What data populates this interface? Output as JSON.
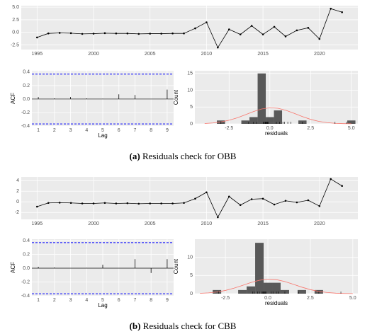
{
  "chart_data": [
    {
      "type": "line",
      "x": [
        1995,
        1996,
        1997,
        1998,
        1999,
        2000,
        2001,
        2002,
        2003,
        2004,
        2005,
        2006,
        2007,
        2008,
        2009,
        2010,
        2011,
        2012,
        2013,
        2014,
        2015,
        2016,
        2017,
        2018,
        2019,
        2020,
        2021,
        2022
      ],
      "values": [
        -1.0,
        -0.2,
        -0.1,
        -0.15,
        -0.3,
        -0.25,
        -0.15,
        -0.2,
        -0.2,
        -0.3,
        -0.25,
        -0.25,
        -0.2,
        -0.2,
        0.8,
        2.0,
        -3.0,
        0.6,
        -0.4,
        1.3,
        -0.4,
        1.1,
        -0.8,
        0.4,
        0.9,
        -1.3,
        4.7,
        4.0
      ],
      "color": "#000000",
      "xlim": [
        1993.6,
        2023.4
      ],
      "xticks": [
        1995,
        2000,
        2005,
        2010,
        2015,
        2020
      ],
      "ylim": [
        -3.4,
        5.3
      ],
      "yticks": [
        -2.5,
        {
          "value": 0,
          "label": "0.0"
        },
        2.5,
        {
          "value": 5,
          "label": "5.0"
        }
      ],
      "grid": true
    },
    {
      "type": "bar",
      "x": [
        1,
        2,
        3,
        4,
        5,
        6,
        7,
        8,
        9
      ],
      "values": [
        0.03,
        0.01,
        0.03,
        0.01,
        0.005,
        0.07,
        0.06,
        0.0,
        0.14
      ],
      "color": "#000000",
      "conf_limits": [
        -0.37,
        0.37
      ],
      "conf_color": "#0000ff",
      "xlabel": "Lag",
      "ylabel": "ACF",
      "xlim": [
        0.6,
        9.4
      ],
      "xticks": [
        1,
        2,
        3,
        4,
        5,
        6,
        7,
        8,
        9
      ],
      "ylim": [
        -0.4,
        0.42
      ],
      "yticks": [
        -0.4,
        -0.2,
        {
          "value": 0,
          "label": "0.0"
        },
        0.2,
        0.4
      ],
      "grid": true
    },
    {
      "type": "histogram",
      "bins": [
        -4.25,
        -3.75,
        -3.25,
        -2.75,
        -2.25,
        -1.75,
        -1.25,
        -0.75,
        -0.25,
        0.25,
        0.75,
        1.25,
        1.75,
        2.25,
        2.75,
        3.25,
        3.75,
        4.25,
        4.75,
        5.25
      ],
      "values": [
        0,
        0,
        1,
        0,
        0,
        1,
        2,
        15,
        2,
        4,
        0,
        0,
        1,
        0,
        0,
        0,
        0,
        0,
        1,
        1
      ],
      "color": "#595959",
      "curve": {
        "color": "#f8766d",
        "x": [
          -4,
          -3.5,
          -3,
          -2.5,
          -2,
          -1.5,
          -1,
          -0.5,
          0,
          0.5,
          1,
          1.5,
          2,
          2.5,
          3,
          3.5,
          4,
          4.5,
          5
        ],
        "y": [
          0.11,
          0.27,
          0.57,
          1.07,
          1.8,
          2.72,
          3.67,
          4.43,
          4.79,
          4.63,
          4.01,
          3.11,
          2.15,
          1.33,
          0.74,
          0.37,
          0.16,
          0.07,
          0.03
        ]
      },
      "xlabel": "residuals",
      "ylabel": "Count",
      "xlim": [
        -4.6,
        5.4
      ],
      "xticks": [
        -2.5,
        {
          "value": 0,
          "label": "0.0"
        },
        2.5,
        {
          "value": 5,
          "label": "5.0"
        }
      ],
      "ylim": [
        0,
        15.8
      ],
      "yticks": [
        0,
        5,
        10,
        15
      ],
      "grid": true
    },
    {
      "type": "line",
      "x": [
        1995,
        1996,
        1997,
        1998,
        1999,
        2000,
        2001,
        2002,
        2003,
        2004,
        2005,
        2006,
        2007,
        2008,
        2009,
        2010,
        2011,
        2012,
        2013,
        2014,
        2015,
        2016,
        2017,
        2018,
        2019,
        2020,
        2021,
        2022
      ],
      "values": [
        -0.9,
        -0.2,
        -0.15,
        -0.2,
        -0.3,
        -0.3,
        -0.2,
        -0.3,
        -0.25,
        -0.35,
        -0.3,
        -0.3,
        -0.3,
        -0.2,
        0.6,
        1.8,
        -2.9,
        1.0,
        -0.6,
        0.5,
        0.6,
        -0.5,
        0.2,
        -0.1,
        0.3,
        -0.8,
        4.3,
        3.0
      ],
      "color": "#000000",
      "xlim": [
        1993.6,
        2023.4
      ],
      "xticks": [
        1995,
        2000,
        2005,
        2010,
        2015,
        2020
      ],
      "ylim": [
        -3.3,
        4.7
      ],
      "yticks": [
        -2,
        0,
        2,
        4
      ],
      "grid": true
    },
    {
      "type": "bar",
      "x": [
        1,
        2,
        3,
        4,
        5,
        6,
        7,
        8,
        9
      ],
      "values": [
        0.02,
        0.01,
        0.0,
        0.005,
        0.05,
        0.0,
        0.13,
        -0.07,
        0.13
      ],
      "color": "#000000",
      "conf_limits": [
        -0.37,
        0.37
      ],
      "conf_color": "#0000ff",
      "xlabel": "Lag",
      "ylabel": "ACF",
      "xlim": [
        0.6,
        9.4
      ],
      "xticks": [
        1,
        2,
        3,
        4,
        5,
        6,
        7,
        8,
        9
      ],
      "ylim": [
        -0.4,
        0.42
      ],
      "yticks": [
        -0.4,
        -0.2,
        {
          "value": 0,
          "label": "0.0"
        },
        0.2,
        0.4
      ],
      "grid": true
    },
    {
      "type": "histogram",
      "bins": [
        -4.25,
        -3.75,
        -3.25,
        -2.75,
        -2.25,
        -1.75,
        -1.25,
        -0.75,
        -0.25,
        0.25,
        0.75,
        1.25,
        1.75,
        2.25,
        2.75,
        3.25,
        3.75,
        4.25,
        4.75,
        5.25
      ],
      "values": [
        0,
        0,
        1,
        0,
        0,
        1,
        2,
        14,
        3,
        3,
        1,
        0,
        1,
        0,
        1,
        0,
        0,
        0,
        0,
        1
      ],
      "color": "#595959",
      "curve": {
        "color": "#f8766d",
        "x": [
          -4,
          -3.5,
          -3,
          -2.5,
          -2,
          -1.5,
          -1,
          -0.5,
          0,
          0.5,
          1,
          1.5,
          2,
          2.5,
          3,
          3.5,
          4,
          4.5,
          5
        ],
        "y": [
          0.09,
          0.22,
          0.47,
          0.89,
          1.5,
          2.27,
          3.06,
          3.69,
          3.99,
          3.86,
          3.34,
          2.59,
          1.79,
          1.11,
          0.62,
          0.31,
          0.13,
          0.05,
          0.02
        ]
      },
      "xlabel": "residuals",
      "ylabel": "Count",
      "xlim": [
        -4.3,
        5.3
      ],
      "xticks": [
        -2.5,
        {
          "value": 0,
          "label": "0.0"
        },
        2.5,
        {
          "value": 5,
          "label": "5.0"
        }
      ],
      "ylim": [
        0,
        15
      ],
      "yticks": [
        0,
        5,
        10
      ],
      "grid": true
    }
  ],
  "captions": [
    {
      "label": "(a)",
      "text": "Residuals check for OBB"
    },
    {
      "label": "(b)",
      "text": "Residuals check for CBB"
    }
  ]
}
